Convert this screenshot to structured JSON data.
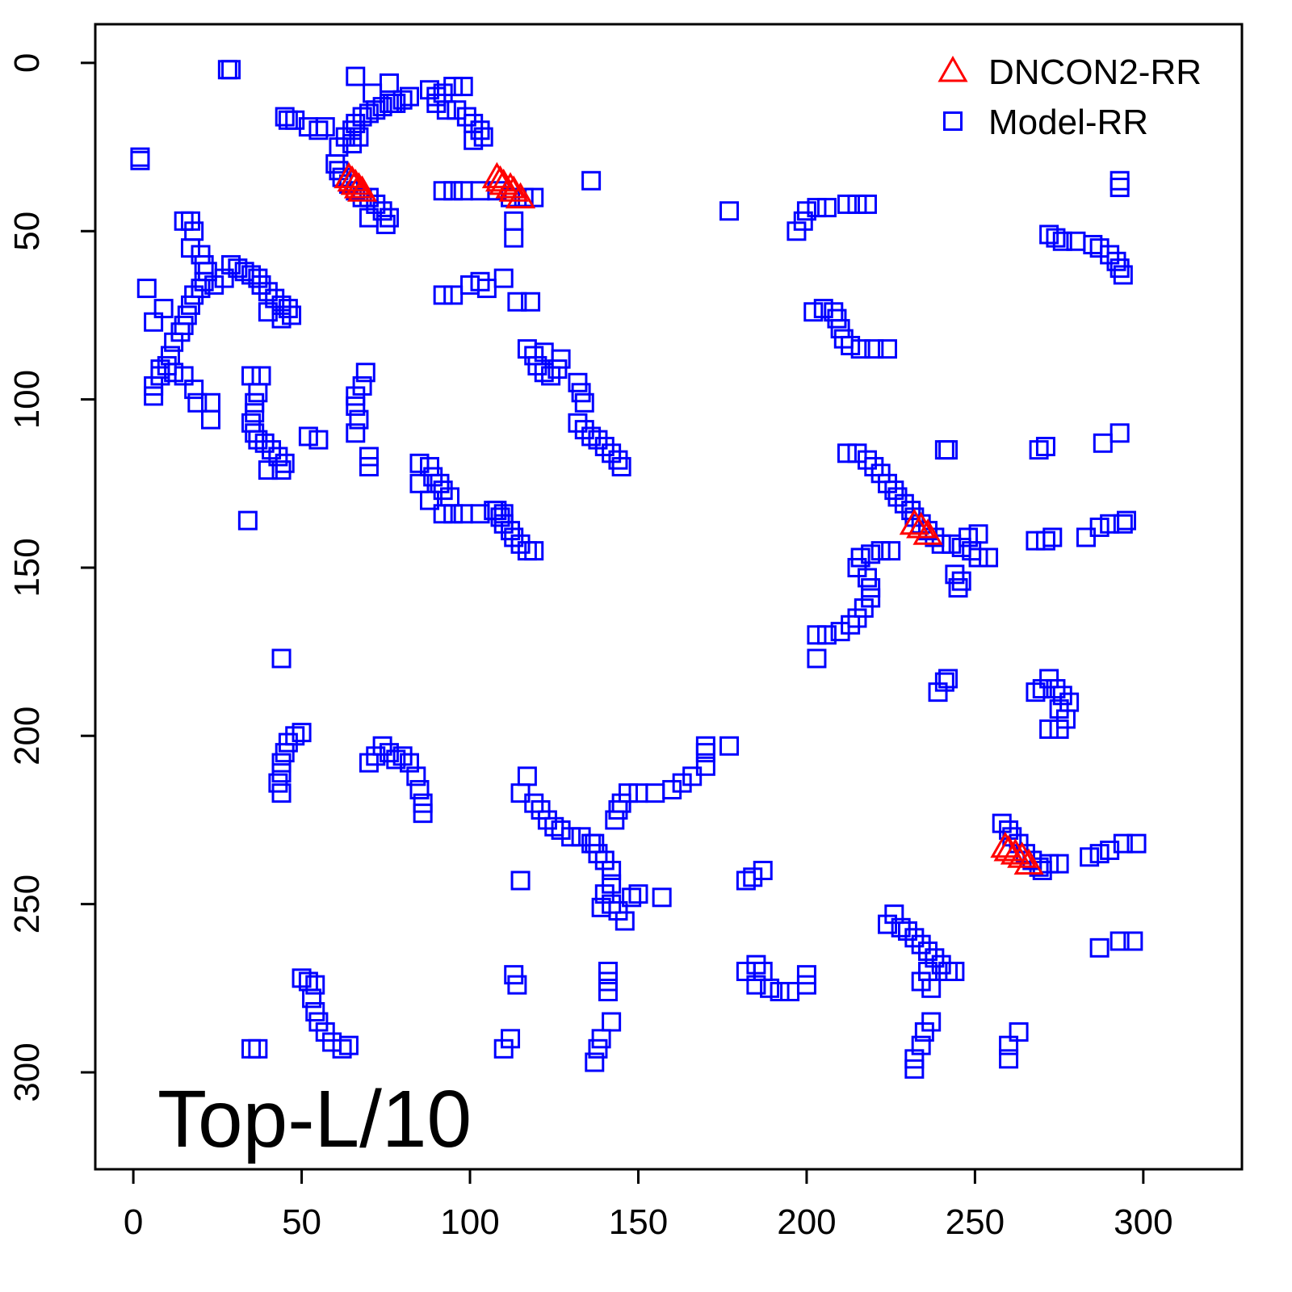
{
  "chart_data": {
    "type": "scatter",
    "annotation": "Top-L/10",
    "xlim": [
      -11.3,
      329.3
    ],
    "ylim": [
      328.8,
      -11.5
    ],
    "xticks": [
      0,
      50,
      100,
      150,
      200,
      250,
      300
    ],
    "yticks": [
      0,
      50,
      100,
      150,
      200,
      250,
      300
    ],
    "legend": "top-right",
    "series": [
      {
        "name": "DNCON2-RR",
        "color": "#ff0000",
        "marker": "triangle",
        "x": [
          64,
          65,
          66,
          67,
          68,
          108,
          109,
          110,
          112,
          113,
          115,
          232,
          234,
          236,
          259,
          260,
          262,
          264,
          266
        ],
        "values": [
          34,
          35,
          36,
          37,
          38,
          34,
          35,
          36,
          37,
          38,
          40,
          137,
          138,
          140,
          233,
          234,
          235,
          236,
          238
        ]
      },
      {
        "name": "Model-RR",
        "color": "#0000ff",
        "marker": "square",
        "x": [
          28,
          29,
          2,
          2,
          45,
          46,
          48,
          52,
          55,
          57,
          61,
          63,
          65,
          66,
          68,
          70,
          72,
          74,
          76,
          78,
          80,
          82,
          66,
          71,
          76,
          77,
          65,
          67,
          60,
          61,
          62,
          64,
          66,
          68,
          70,
          72,
          74,
          76,
          75,
          70,
          88,
          90,
          92,
          95,
          98,
          90,
          93,
          96,
          99,
          101,
          103,
          101,
          104,
          92,
          95,
          98,
          103,
          108,
          112,
          116,
          119,
          113,
          113,
          136,
          177,
          92,
          95,
          100,
          103,
          105,
          110,
          114,
          118,
          15,
          17,
          18,
          17,
          20,
          21,
          22,
          21,
          20,
          18,
          17,
          16,
          15,
          14,
          12,
          11,
          10,
          8,
          6,
          6,
          8,
          12,
          15,
          18,
          19,
          23,
          23,
          4,
          6,
          9,
          24,
          27,
          29,
          31,
          33,
          35,
          37,
          38,
          40,
          42,
          44,
          46,
          47,
          44,
          40,
          35,
          38,
          37,
          36,
          36,
          35,
          36,
          37,
          39,
          41,
          43,
          45,
          44,
          40,
          34,
          52,
          55,
          66,
          67,
          66,
          66,
          68,
          69,
          70,
          70,
          44,
          85,
          88,
          89,
          91,
          92,
          94,
          85,
          88,
          92,
          95,
          98,
          103,
          107,
          110,
          108,
          109,
          110,
          112,
          113,
          115,
          117,
          119,
          117,
          119,
          120,
          122,
          124,
          126,
          127,
          122,
          132,
          133,
          134,
          132,
          134,
          136,
          138,
          140,
          142,
          144,
          145,
          44,
          43,
          44,
          44,
          45,
          46,
          48,
          50,
          70,
          72,
          74,
          76,
          78,
          80,
          82,
          84,
          85,
          86,
          86,
          115,
          117,
          119,
          121,
          123,
          125,
          127,
          130,
          133,
          136,
          137,
          138,
          140,
          142,
          142,
          140,
          139,
          142,
          144,
          146,
          148,
          150,
          157,
          143,
          144,
          145,
          147,
          150,
          155,
          160,
          163,
          166,
          170,
          170,
          170,
          177,
          115,
          182,
          184,
          187,
          182,
          185,
          187,
          189,
          192,
          195,
          200,
          200,
          185,
          50,
          52,
          54,
          53,
          54,
          55,
          57,
          59,
          62,
          64,
          35,
          37,
          113,
          114,
          110,
          112,
          141,
          141,
          141,
          142,
          139,
          138,
          137,
          197,
          199,
          200,
          203,
          206,
          212,
          215,
          218,
          202,
          205,
          208,
          209,
          210,
          211,
          213,
          216,
          220,
          224,
          212,
          215,
          218,
          220,
          222,
          224,
          226,
          227,
          229,
          231,
          232,
          234,
          236,
          238,
          240,
          243,
          246,
          249,
          251,
          254,
          251,
          248,
          244,
          246,
          245,
          241,
          242,
          225,
          222,
          219,
          216,
          215,
          218,
          219,
          219,
          217,
          215,
          213,
          210,
          206,
          203,
          203,
          239,
          241,
          242,
          268,
          270,
          272,
          274,
          276,
          278,
          275,
          277,
          272,
          275,
          269,
          271,
          268,
          271,
          273,
          283,
          287,
          290,
          294,
          295,
          288,
          293,
          272,
          274,
          276,
          280,
          285,
          287,
          290,
          292,
          293,
          294,
          293,
          293,
          258,
          260,
          261,
          263,
          265,
          267,
          269,
          270,
          272,
          275,
          284,
          287,
          290,
          294,
          298,
          224,
          226,
          228,
          230,
          232,
          234,
          236,
          238,
          240,
          242,
          244,
          236,
          234,
          237,
          232,
          232,
          234,
          235,
          237,
          260,
          260,
          263,
          287,
          293,
          297
        ],
        "values": [
          2,
          2,
          28,
          29,
          16,
          17,
          17,
          19,
          20,
          19,
          25,
          22,
          20,
          18,
          16,
          15,
          14,
          13,
          12,
          12,
          11,
          10,
          4,
          9,
          6,
          12,
          24,
          22,
          30,
          32,
          34,
          36,
          38,
          40,
          40,
          42,
          44,
          46,
          48,
          46,
          8,
          10,
          9,
          7,
          7,
          12,
          14,
          14,
          16,
          18,
          20,
          23,
          22,
          38,
          38,
          38,
          38,
          38,
          40,
          40,
          40,
          47,
          52,
          35,
          44,
          69,
          69,
          66,
          65,
          67,
          64,
          71,
          71,
          47,
          47,
          50,
          55,
          57,
          60,
          62,
          65,
          67,
          69,
          72,
          75,
          78,
          80,
          83,
          87,
          90,
          93,
          96,
          99,
          91,
          92,
          93,
          97,
          101,
          101,
          106,
          67,
          77,
          73,
          66,
          64,
          60,
          61,
          62,
          63,
          64,
          66,
          68,
          70,
          72,
          73,
          75,
          76,
          74,
          93,
          93,
          98,
          101,
          104,
          107,
          110,
          112,
          113,
          115,
          117,
          119,
          121,
          121,
          136,
          111,
          112,
          110,
          106,
          102,
          99,
          96,
          92,
          117,
          120,
          177,
          119,
          120,
          123,
          125,
          127,
          129,
          125,
          130,
          134,
          134,
          134,
          134,
          133,
          134,
          133,
          135,
          137,
          139,
          141,
          143,
          145,
          145,
          85,
          87,
          90,
          92,
          93,
          91,
          88,
          86,
          95,
          98,
          101,
          107,
          109,
          111,
          112,
          114,
          116,
          118,
          120,
          217,
          214,
          211,
          208,
          205,
          202,
          200,
          199,
          208,
          206,
          203,
          205,
          207,
          206,
          208,
          212,
          216,
          220,
          223,
          217,
          212,
          220,
          222,
          225,
          227,
          228,
          230,
          230,
          232,
          232,
          235,
          237,
          240,
          244,
          247,
          251,
          250,
          252,
          255,
          248,
          247,
          248,
          225,
          222,
          220,
          217,
          217,
          217,
          216,
          214,
          212,
          209,
          205,
          203,
          203,
          243,
          243,
          242,
          240,
          270,
          268,
          270,
          275,
          276,
          276,
          274,
          271,
          274,
          272,
          273,
          274,
          278,
          282,
          285,
          288,
          291,
          293,
          292,
          293,
          293,
          271,
          274,
          293,
          290,
          270,
          273,
          276,
          285,
          290,
          293,
          297,
          50,
          47,
          44,
          43,
          43,
          42,
          42,
          42,
          74,
          73,
          74,
          76,
          79,
          82,
          84,
          85,
          85,
          85,
          116,
          116,
          118,
          120,
          122,
          125,
          127,
          129,
          131,
          133,
          135,
          137,
          139,
          141,
          143,
          143,
          144,
          145,
          147,
          147,
          140,
          141,
          152,
          154,
          156,
          115,
          115,
          145,
          145,
          146,
          147,
          150,
          153,
          156,
          159,
          162,
          165,
          167,
          169,
          170,
          170,
          177,
          187,
          184,
          183,
          187,
          186,
          183,
          186,
          188,
          190,
          192,
          195,
          198,
          198,
          115,
          114,
          142,
          142,
          141,
          141,
          138,
          137,
          137,
          136,
          113,
          110,
          51,
          52,
          53,
          53,
          54,
          55,
          57,
          59,
          61,
          63,
          35,
          37,
          226,
          228,
          230,
          232,
          235,
          237,
          239,
          240,
          238,
          238,
          236,
          235,
          234,
          232,
          232,
          256,
          253,
          257,
          258,
          260,
          262,
          264,
          266,
          268,
          270,
          270,
          270,
          273,
          275,
          296,
          299,
          292,
          288,
          285,
          296,
          292,
          288,
          263,
          261,
          261
        ]
      }
    ]
  }
}
